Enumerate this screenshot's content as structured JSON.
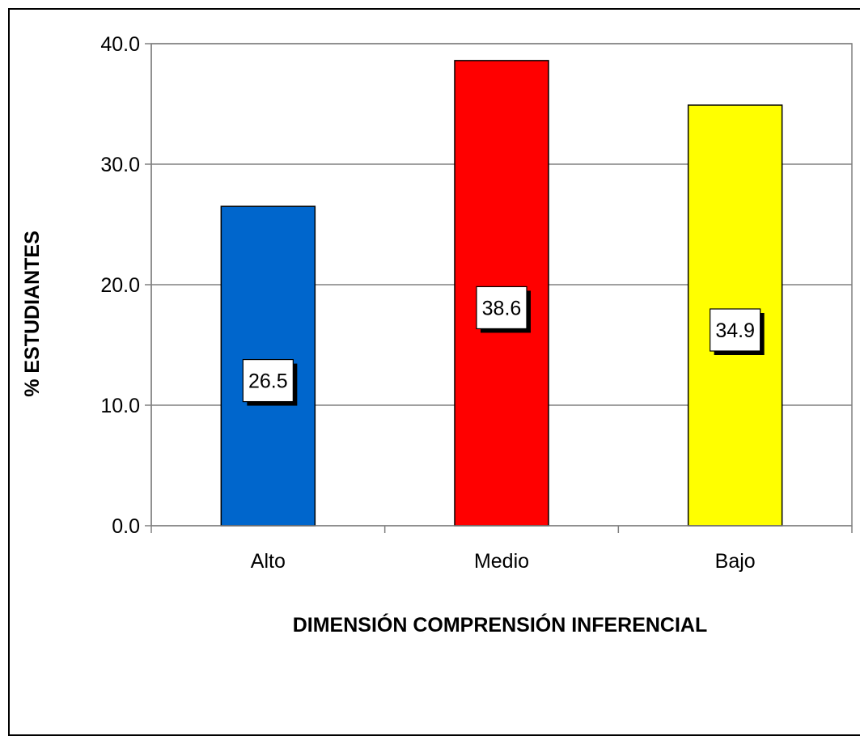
{
  "chart_data": {
    "type": "bar",
    "title": "",
    "xlabel": "DIMENSIÓN COMPRENSIÓN INFERENCIAL",
    "ylabel": "% ESTUDIANTES",
    "categories": [
      "Alto",
      "Medio",
      "Bajo"
    ],
    "values": [
      26.5,
      38.6,
      34.9
    ],
    "value_labels": [
      "26.5",
      "38.6",
      "34.9"
    ],
    "colors": [
      "#0066CC",
      "#FF0000",
      "#FFFF00"
    ],
    "ylim": [
      0,
      40
    ],
    "yticks": [
      "0.0",
      "10.0",
      "20.0",
      "30.0",
      "40.0"
    ],
    "grid": true,
    "legend": "none"
  }
}
